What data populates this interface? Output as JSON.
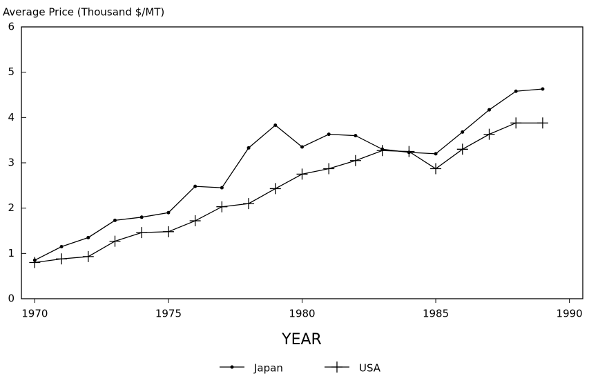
{
  "chart_data": {
    "type": "line",
    "ylabel": "Average Price (Thousand $/MT)",
    "xlabel": "YEAR",
    "x": [
      1970,
      1971,
      1972,
      1973,
      1974,
      1975,
      1976,
      1977,
      1978,
      1979,
      1980,
      1981,
      1982,
      1983,
      1984,
      1985,
      1986,
      1987,
      1988,
      1989
    ],
    "series": [
      {
        "name": "Japan",
        "color": "#000000",
        "marker": "dot",
        "values": [
          0.85,
          1.15,
          1.35,
          1.73,
          1.8,
          1.9,
          2.48,
          2.45,
          3.33,
          3.83,
          3.35,
          3.63,
          3.6,
          3.3,
          3.23,
          3.2,
          3.68,
          4.17,
          4.58,
          4.63
        ]
      },
      {
        "name": "USA",
        "color": "#000000",
        "marker": "plus",
        "values": [
          0.8,
          0.88,
          0.93,
          1.27,
          1.46,
          1.48,
          1.72,
          2.03,
          2.1,
          2.43,
          2.75,
          2.87,
          3.05,
          3.27,
          3.25,
          2.87,
          3.3,
          3.63,
          3.88,
          3.88
        ]
      }
    ],
    "xlim": [
      1969.5,
      1990.5
    ],
    "xticks": [
      1970,
      1975,
      1980,
      1985,
      1990
    ],
    "ylim": [
      0,
      6
    ],
    "yticks": [
      0,
      1,
      2,
      3,
      4,
      5,
      6
    ],
    "legend": "bottom",
    "grid": false
  }
}
